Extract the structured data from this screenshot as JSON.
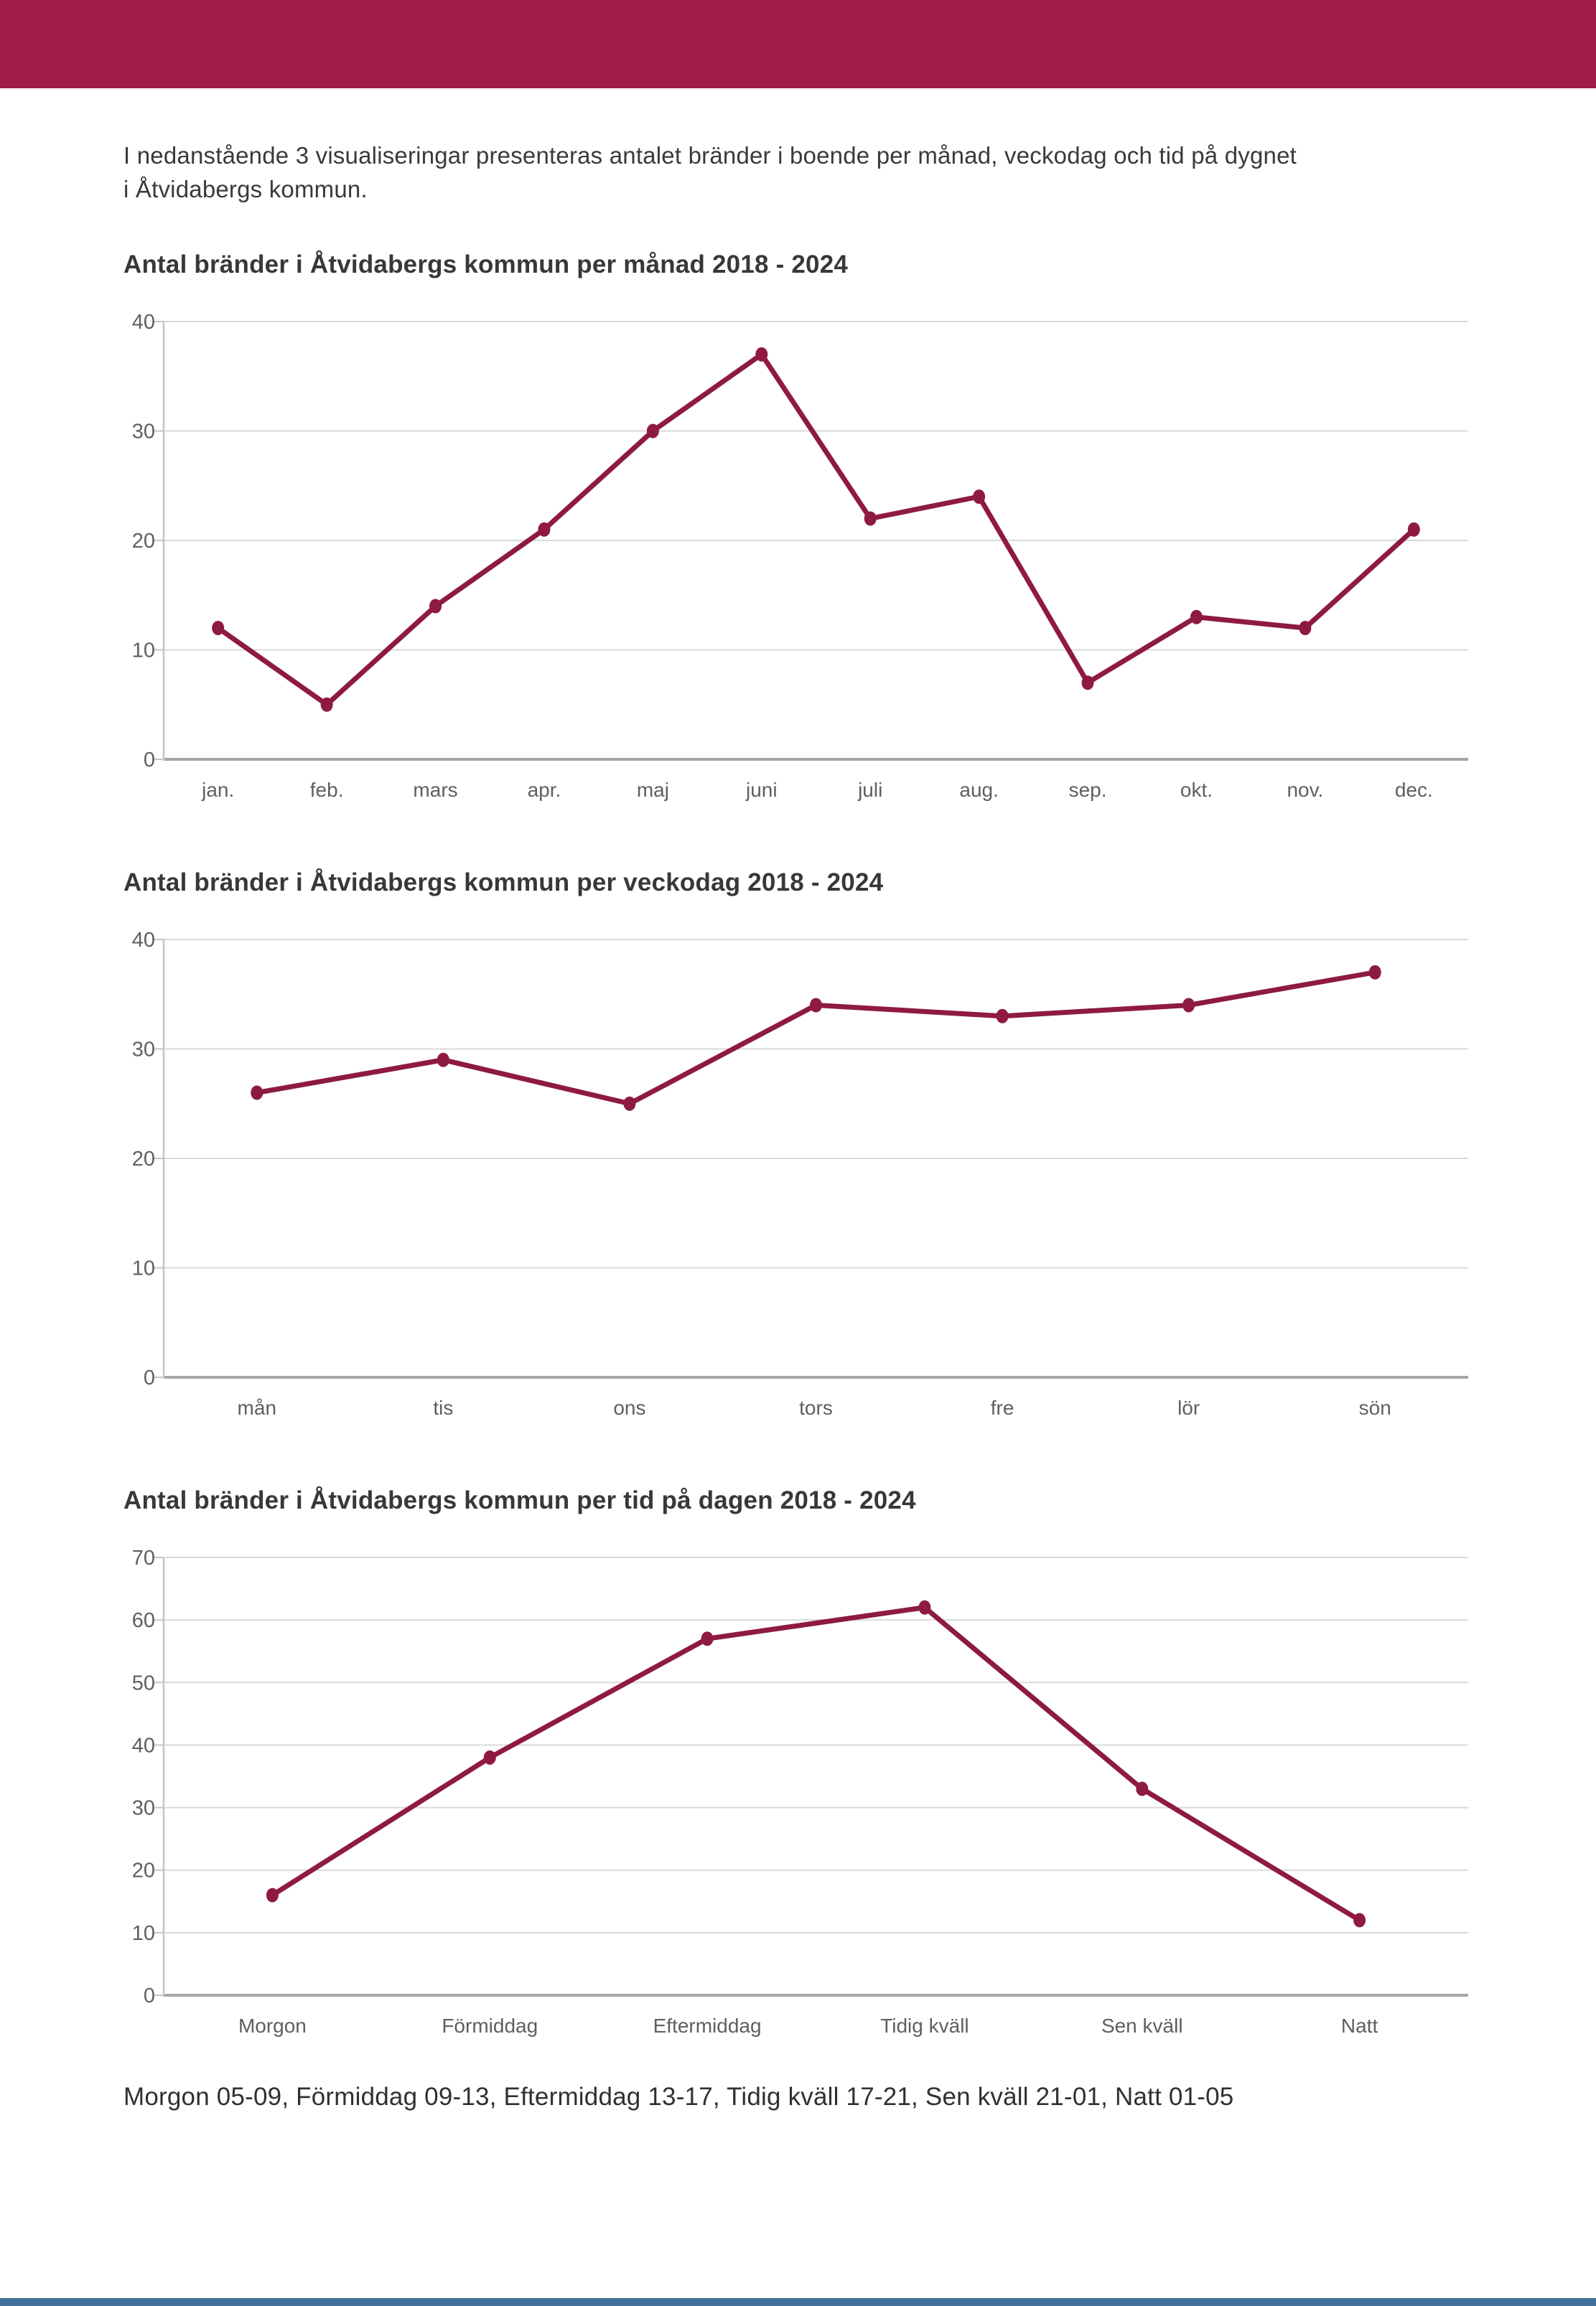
{
  "page": {
    "intro_line1": "I nedanstående 3 visualiseringar presenteras antalet bränder i boende per månad, veckodag och tid på dygnet",
    "intro_line2": "i Åtvidabergs kommun.",
    "footer_note": "Morgon 05-09, Förmiddag 09-13, Eftermiddag 13-17, Tidig kväll 17-21, Sen kväll 21-01, Natt 01-05"
  },
  "colors": {
    "header_bar": "#a01c4b",
    "footer_bar": "#41719c",
    "line": "#8e1a44",
    "point": "#8e1a44",
    "gridline": "#d9d9d9",
    "axis": "#a6a6a6",
    "axis_light": "#c6c6c6",
    "tick_label": "#5f5f5f"
  },
  "chart_data": [
    {
      "type": "line",
      "title": "Antal bränder i Åtvidabergs kommun per månad 2018 - 2024",
      "categories": [
        "jan.",
        "feb.",
        "mars",
        "apr.",
        "maj",
        "juni",
        "juli",
        "aug.",
        "sep.",
        "okt.",
        "nov.",
        "dec."
      ],
      "values": [
        12,
        5,
        14,
        21,
        30,
        37,
        22,
        24,
        7,
        13,
        12,
        21
      ],
      "xlabel": "",
      "ylabel": "",
      "ylim": [
        0,
        40
      ],
      "ytick_step": 10,
      "grid": true,
      "legend_position": "none"
    },
    {
      "type": "line",
      "title": "Antal bränder i Åtvidabergs kommun per veckodag 2018 - 2024",
      "categories": [
        "mån",
        "tis",
        "ons",
        "tors",
        "fre",
        "lör",
        "sön"
      ],
      "values": [
        26,
        29,
        25,
        34,
        33,
        34,
        37
      ],
      "xlabel": "",
      "ylabel": "",
      "ylim": [
        0,
        40
      ],
      "ytick_step": 10,
      "grid": true,
      "legend_position": "none"
    },
    {
      "type": "line",
      "title": "Antal bränder i Åtvidabergs kommun per tid på dagen 2018 - 2024",
      "categories": [
        "Morgon",
        "Förmiddag",
        "Eftermiddag",
        "Tidig kväll",
        "Sen kväll",
        "Natt"
      ],
      "values": [
        16,
        38,
        57,
        62,
        33,
        12
      ],
      "xlabel": "",
      "ylabel": "",
      "ylim": [
        0,
        70
      ],
      "ytick_step": 10,
      "grid": true,
      "legend_position": "none"
    }
  ]
}
